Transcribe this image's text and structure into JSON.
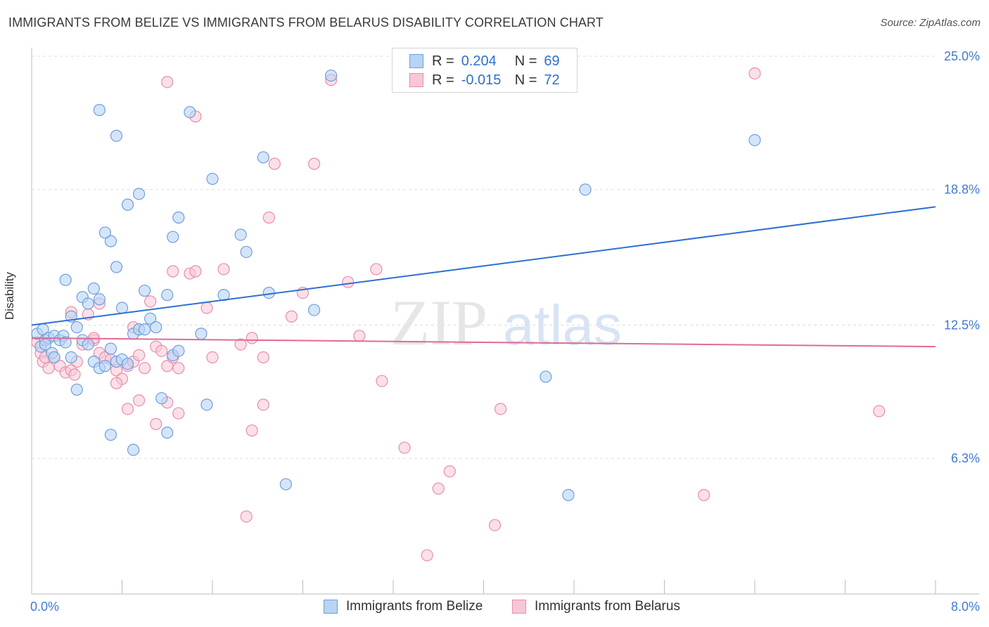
{
  "title": "IMMIGRANTS FROM BELIZE VS IMMIGRANTS FROM BELARUS DISABILITY CORRELATION CHART",
  "source": "Source: ZipAtlas.com",
  "colors": {
    "belize_fill": "#b9d3f5",
    "belize_stroke": "#6f9fdc",
    "belize_line": "#2e6fd2",
    "belarus_fill": "#f8c6d6",
    "belarus_stroke": "#e78fab",
    "belarus_line": "#e06b96",
    "axis_text": "#3f7bd4",
    "grid": "#dddddd"
  },
  "legend_top": {
    "rows": [
      {
        "r_label": "R =",
        "r_value": "0.204",
        "n_label": "N =",
        "n_value": "69"
      },
      {
        "r_label": "R =",
        "r_value": "-0.015",
        "n_label": "N =",
        "n_value": "72"
      }
    ]
  },
  "chart_data": {
    "type": "scatter",
    "title": "IMMIGRANTS FROM BELIZE VS IMMIGRANTS FROM BELARUS DISABILITY CORRELATION CHART",
    "xlabel": "",
    "ylabel": "Disability",
    "xlim": [
      0,
      8
    ],
    "ylim": [
      0,
      25
    ],
    "x_tick_labels": [
      "0.0%",
      "8.0%"
    ],
    "y_tick_labels": [
      "25.0%",
      "18.8%",
      "12.5%",
      "6.3%"
    ],
    "y_tick_values": [
      25.0,
      18.8,
      12.5,
      6.3
    ],
    "watermark": "ZIPatlas",
    "series": [
      {
        "name": "Immigrants from Belize",
        "r": 0.204,
        "n": 69,
        "trend": {
          "x": [
            0,
            8
          ],
          "y": [
            12.5,
            18.0
          ]
        },
        "points": [
          [
            0.05,
            12.1
          ],
          [
            0.08,
            11.5
          ],
          [
            0.1,
            12.3
          ],
          [
            0.12,
            11.8
          ],
          [
            0.15,
            11.9
          ],
          [
            0.18,
            11.2
          ],
          [
            0.2,
            12.0
          ],
          [
            0.25,
            11.8
          ],
          [
            0.28,
            12.0
          ],
          [
            0.3,
            11.7
          ],
          [
            0.35,
            12.9
          ],
          [
            0.4,
            12.4
          ],
          [
            0.45,
            11.8
          ],
          [
            0.5,
            11.6
          ],
          [
            0.55,
            10.8
          ],
          [
            0.6,
            10.5
          ],
          [
            0.65,
            10.6
          ],
          [
            0.7,
            11.4
          ],
          [
            0.75,
            10.8
          ],
          [
            0.8,
            10.9
          ],
          [
            0.85,
            10.7
          ],
          [
            0.9,
            12.1
          ],
          [
            0.95,
            12.3
          ],
          [
            1.0,
            12.3
          ],
          [
            0.3,
            14.6
          ],
          [
            0.35,
            11.0
          ],
          [
            0.45,
            13.8
          ],
          [
            0.5,
            13.5
          ],
          [
            0.55,
            14.2
          ],
          [
            0.6,
            13.7
          ],
          [
            0.7,
            16.4
          ],
          [
            0.65,
            16.8
          ],
          [
            0.75,
            15.2
          ],
          [
            0.8,
            13.3
          ],
          [
            0.85,
            18.1
          ],
          [
            0.95,
            18.6
          ],
          [
            1.0,
            14.1
          ],
          [
            1.05,
            12.8
          ],
          [
            1.1,
            12.4
          ],
          [
            1.2,
            13.9
          ],
          [
            1.25,
            16.6
          ],
          [
            1.3,
            17.5
          ],
          [
            1.4,
            22.4
          ],
          [
            1.5,
            12.1
          ],
          [
            1.6,
            19.3
          ],
          [
            1.7,
            13.9
          ],
          [
            1.85,
            16.7
          ],
          [
            1.9,
            15.9
          ],
          [
            2.05,
            20.3
          ],
          [
            2.1,
            14.0
          ],
          [
            2.5,
            13.2
          ],
          [
            2.65,
            24.1
          ],
          [
            0.6,
            22.5
          ],
          [
            0.75,
            21.3
          ],
          [
            1.25,
            11.1
          ],
          [
            1.3,
            11.3
          ],
          [
            0.4,
            9.5
          ],
          [
            0.7,
            7.4
          ],
          [
            0.9,
            6.7
          ],
          [
            1.15,
            9.1
          ],
          [
            1.2,
            7.5
          ],
          [
            1.55,
            8.8
          ],
          [
            2.25,
            5.1
          ],
          [
            4.55,
            10.1
          ],
          [
            4.75,
            4.6
          ],
          [
            4.9,
            18.8
          ],
          [
            6.4,
            21.1
          ],
          [
            0.2,
            11.0
          ],
          [
            0.12,
            11.6
          ]
        ]
      },
      {
        "name": "Immigrants from Belarus",
        "r": -0.015,
        "n": 72,
        "trend": {
          "x": [
            0,
            8
          ],
          "y": [
            11.9,
            11.5
          ]
        },
        "points": [
          [
            0.05,
            11.7
          ],
          [
            0.08,
            11.2
          ],
          [
            0.1,
            10.8
          ],
          [
            0.12,
            11.0
          ],
          [
            0.15,
            10.5
          ],
          [
            0.2,
            11.0
          ],
          [
            0.25,
            10.6
          ],
          [
            0.3,
            10.3
          ],
          [
            0.35,
            10.4
          ],
          [
            0.38,
            10.2
          ],
          [
            0.4,
            10.8
          ],
          [
            0.45,
            11.6
          ],
          [
            0.5,
            13.0
          ],
          [
            0.55,
            11.8
          ],
          [
            0.6,
            11.2
          ],
          [
            0.65,
            11.0
          ],
          [
            0.7,
            10.9
          ],
          [
            0.75,
            10.4
          ],
          [
            0.8,
            10.0
          ],
          [
            0.85,
            10.6
          ],
          [
            0.9,
            10.8
          ],
          [
            0.95,
            11.1
          ],
          [
            1.0,
            10.5
          ],
          [
            1.05,
            13.6
          ],
          [
            1.1,
            11.5
          ],
          [
            1.15,
            11.3
          ],
          [
            1.2,
            10.6
          ],
          [
            1.25,
            11.0
          ],
          [
            1.3,
            10.5
          ],
          [
            1.4,
            14.9
          ],
          [
            1.45,
            15.0
          ],
          [
            1.55,
            13.3
          ],
          [
            1.6,
            11.0
          ],
          [
            1.7,
            15.1
          ],
          [
            1.85,
            11.6
          ],
          [
            1.95,
            11.9
          ],
          [
            2.05,
            11.0
          ],
          [
            2.1,
            17.5
          ],
          [
            2.15,
            20.0
          ],
          [
            2.3,
            12.9
          ],
          [
            2.4,
            14.0
          ],
          [
            2.5,
            20.0
          ],
          [
            2.65,
            23.9
          ],
          [
            2.8,
            14.5
          ],
          [
            2.9,
            12.0
          ],
          [
            3.1,
            9.9
          ],
          [
            3.05,
            15.1
          ],
          [
            3.3,
            6.8
          ],
          [
            3.5,
            1.8
          ],
          [
            3.6,
            4.9
          ],
          [
            3.7,
            5.7
          ],
          [
            4.1,
            3.2
          ],
          [
            4.15,
            8.6
          ],
          [
            5.95,
            4.6
          ],
          [
            6.4,
            24.2
          ],
          [
            7.5,
            8.5
          ],
          [
            0.35,
            13.1
          ],
          [
            0.6,
            13.5
          ],
          [
            0.75,
            9.8
          ],
          [
            0.85,
            8.6
          ],
          [
            0.95,
            9.0
          ],
          [
            1.1,
            7.9
          ],
          [
            1.2,
            8.9
          ],
          [
            1.3,
            8.4
          ],
          [
            1.95,
            7.6
          ],
          [
            2.05,
            8.8
          ],
          [
            1.9,
            3.6
          ],
          [
            1.2,
            23.8
          ],
          [
            1.45,
            22.2
          ],
          [
            0.9,
            12.4
          ],
          [
            1.25,
            15.0
          ],
          [
            0.55,
            11.9
          ]
        ]
      }
    ]
  },
  "legend_bottom": {
    "items": [
      "Immigrants from Belize",
      "Immigrants from Belarus"
    ]
  }
}
